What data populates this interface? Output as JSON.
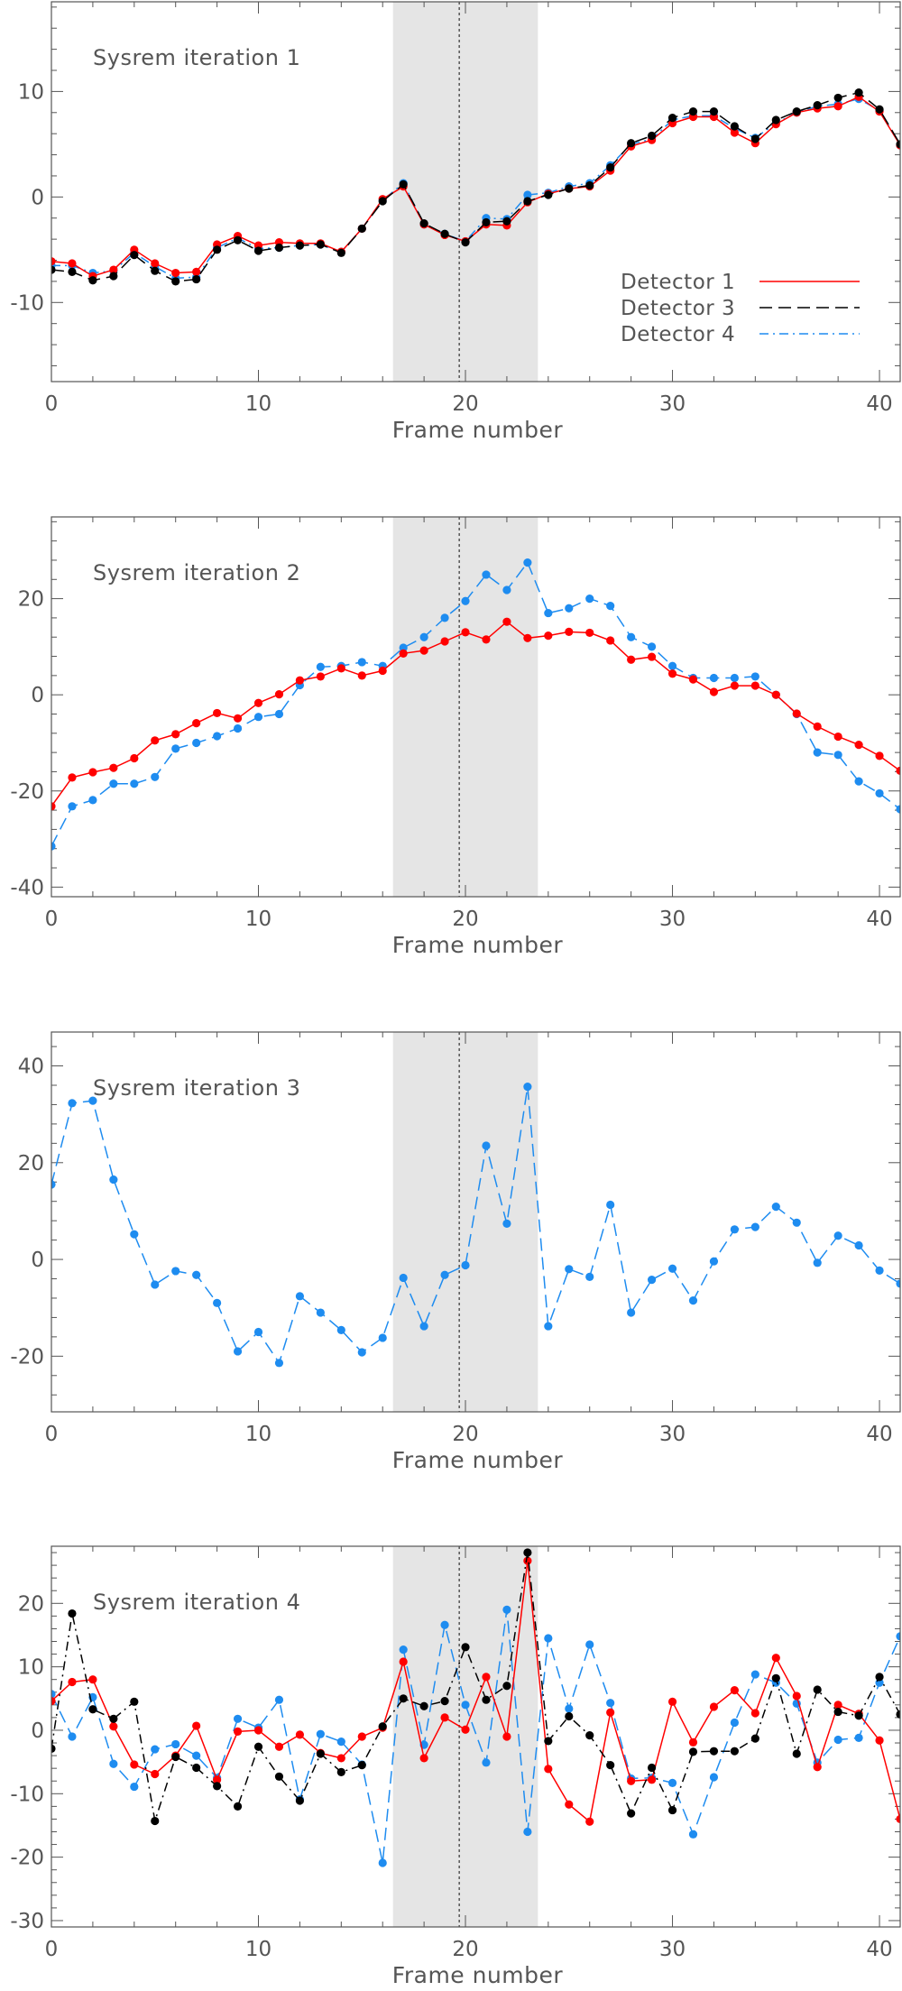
{
  "colors": {
    "detector_1": "#ff0000",
    "detector_3": "#000000",
    "detector_4": "#1e8cf0",
    "shade": "#e5e5e5",
    "frame": "#555555",
    "text": "#555555"
  },
  "chart_data": [
    {
      "type": "line",
      "title": "Sysrem iteration 1",
      "xlabel": "Frame number",
      "ylabel": "",
      "xlim": [
        0,
        41
      ],
      "ylim": [
        -17.5,
        18.5
      ],
      "xticks": [
        0,
        10,
        20,
        30,
        40
      ],
      "yticks": [
        -10,
        0,
        10
      ],
      "shaded_region": [
        16.5,
        23.5
      ],
      "vertical_dotted_line": 19.7,
      "legend": {
        "placement": "bottom-right",
        "entries": [
          {
            "label": "Detector 1",
            "series": "detector_1",
            "line_style": "solid"
          },
          {
            "label": "Detector 3",
            "series": "detector_3",
            "line_style": "dashed"
          },
          {
            "label": "Detector 4",
            "series": "detector_4",
            "line_style": "dash-dot"
          }
        ]
      },
      "series": [
        {
          "name": "Detector 4",
          "color_key": "detector_4",
          "line_style": "dash-dot",
          "values": [
            -6.5,
            -6.5,
            -7.2,
            -7.0,
            -5.3,
            -6.6,
            -7.7,
            -7.6,
            -4.8,
            -3.9,
            -4.9,
            -4.8,
            -4.6,
            -4.5,
            -5.2,
            -3.0,
            -0.3,
            1.3,
            -2.6,
            -3.5,
            -4.2,
            -2.0,
            -2.1,
            0.2,
            0.4,
            1.0,
            1.3,
            3.0,
            5.0,
            5.5,
            7.3,
            7.7,
            7.7,
            6.5,
            5.6,
            7.0,
            8.0,
            8.6,
            8.8,
            9.3,
            8.2,
            4.9
          ]
        },
        {
          "name": "Detector 1",
          "color_key": "detector_1",
          "line_style": "solid",
          "values": [
            -6.1,
            -6.3,
            -7.5,
            -6.9,
            -5.0,
            -6.3,
            -7.2,
            -7.1,
            -4.5,
            -3.7,
            -4.6,
            -4.3,
            -4.4,
            -4.4,
            -5.2,
            -3.0,
            -0.2,
            1.0,
            -2.6,
            -3.6,
            -4.2,
            -2.6,
            -2.7,
            -0.5,
            0.3,
            0.8,
            1.0,
            2.5,
            4.8,
            5.4,
            7.0,
            7.6,
            7.6,
            6.1,
            5.1,
            6.9,
            8.0,
            8.4,
            8.6,
            9.5,
            8.1,
            4.9
          ]
        },
        {
          "name": "Detector 3",
          "color_key": "detector_3",
          "line_style": "dashed",
          "values": [
            -6.9,
            -7.1,
            -7.9,
            -7.5,
            -5.5,
            -7.0,
            -8.0,
            -7.8,
            -5.0,
            -4.1,
            -5.1,
            -4.8,
            -4.6,
            -4.5,
            -5.3,
            -3.0,
            -0.4,
            1.2,
            -2.5,
            -3.5,
            -4.3,
            -2.4,
            -2.3,
            -0.4,
            0.2,
            0.8,
            1.1,
            2.8,
            5.1,
            5.8,
            7.5,
            8.1,
            8.1,
            6.7,
            5.5,
            7.3,
            8.1,
            8.7,
            9.4,
            9.9,
            8.3,
            5.0
          ]
        }
      ]
    },
    {
      "type": "line",
      "title": "Sysrem iteration 2",
      "xlabel": "Frame number",
      "ylabel": "",
      "xlim": [
        0,
        41
      ],
      "ylim": [
        -42,
        37
      ],
      "xticks": [
        0,
        10,
        20,
        30,
        40
      ],
      "yticks": [
        -40,
        -20,
        0,
        20
      ],
      "shaded_region": [
        16.5,
        23.5
      ],
      "vertical_dotted_line": 19.7,
      "series": [
        {
          "name": "Detector 4",
          "color_key": "detector_4",
          "line_style": "dashed",
          "values": [
            -31.5,
            -23.2,
            -21.9,
            -18.5,
            -18.5,
            -17.1,
            -11.2,
            -10.0,
            -8.6,
            -7.0,
            -4.6,
            -4.0,
            2.0,
            5.8,
            6.0,
            6.8,
            6.0,
            9.8,
            12.0,
            16.0,
            19.5,
            25.0,
            21.8,
            27.5,
            17.0,
            18.0,
            20.0,
            18.5,
            12.0,
            10.0,
            6.0,
            3.5,
            3.5,
            3.5,
            3.8,
            0.0,
            -4.0,
            -12.0,
            -12.5,
            -18.0,
            -20.5,
            -23.8
          ]
        },
        {
          "name": "Detector 1",
          "color_key": "detector_1",
          "line_style": "solid",
          "values": [
            -23.2,
            -17.2,
            -16.1,
            -15.2,
            -13.2,
            -9.5,
            -8.2,
            -5.9,
            -3.8,
            -4.9,
            -1.7,
            0.1,
            3.0,
            3.8,
            5.5,
            4.0,
            5.0,
            8.6,
            9.2,
            11.1,
            13.0,
            11.5,
            15.2,
            11.8,
            12.3,
            13.1,
            12.9,
            11.3,
            7.3,
            7.9,
            4.4,
            3.2,
            0.6,
            1.9,
            1.9,
            0.0,
            -3.9,
            -6.6,
            -8.7,
            -10.4,
            -12.7,
            -15.8
          ]
        }
      ]
    },
    {
      "type": "line",
      "title": "Sysrem iteration 3",
      "xlabel": "Frame number",
      "ylabel": "",
      "xlim": [
        0,
        41
      ],
      "ylim": [
        -31.5,
        47
      ],
      "xticks": [
        0,
        10,
        20,
        30,
        40
      ],
      "yticks": [
        -20,
        0,
        20,
        40
      ],
      "shaded_region": [
        16.5,
        23.5
      ],
      "vertical_dotted_line": 19.7,
      "series": [
        {
          "name": "Detector 4",
          "color_key": "detector_4",
          "line_style": "dashed",
          "values": [
            15.5,
            32.3,
            32.8,
            16.5,
            5.2,
            -5.2,
            -2.4,
            -3.2,
            -9.0,
            -19.0,
            -15.0,
            -21.4,
            -7.6,
            -11.0,
            -14.6,
            -19.2,
            -16.2,
            -3.8,
            -13.8,
            -3.2,
            -1.2,
            23.5,
            7.4,
            35.7,
            -13.8,
            -2.0,
            -3.6,
            11.3,
            -11.0,
            -4.2,
            -1.9,
            -8.5,
            -0.4,
            6.2,
            6.7,
            10.9,
            7.6,
            -0.7,
            4.9,
            2.9,
            -2.3,
            -5.0
          ]
        }
      ]
    },
    {
      "type": "line",
      "title": "Sysrem iteration 4",
      "xlabel": "Frame number",
      "ylabel": "",
      "xlim": [
        0,
        41
      ],
      "ylim": [
        -31,
        29
      ],
      "xticks": [
        0,
        10,
        20,
        30,
        40
      ],
      "yticks": [
        -30,
        -20,
        -10,
        0,
        10,
        20
      ],
      "shaded_region": [
        16.5,
        23.5
      ],
      "vertical_dotted_line": 19.7,
      "series": [
        {
          "name": "Detector 4",
          "color_key": "detector_4",
          "line_style": "dashed",
          "values": [
            5.7,
            -1.0,
            5.2,
            -5.3,
            -8.9,
            -3.0,
            -2.2,
            -4.0,
            -7.5,
            1.8,
            0.4,
            4.8,
            -10.9,
            -0.6,
            -1.8,
            -5.4,
            -20.9,
            12.7,
            -2.3,
            16.6,
            4.0,
            -5.1,
            19.0,
            -16.0,
            14.5,
            3.4,
            13.5,
            4.3,
            -7.6,
            -7.5,
            -8.3,
            -16.4,
            -7.4,
            1.2,
            8.8,
            7.5,
            4.2,
            -5.1,
            -1.5,
            -1.2,
            7.5,
            14.8
          ]
        },
        {
          "name": "Detector 1",
          "color_key": "detector_1",
          "line_style": "solid",
          "values": [
            4.6,
            7.6,
            8.0,
            0.6,
            -5.4,
            -6.9,
            -4.0,
            0.7,
            -7.8,
            -0.2,
            0.0,
            -2.6,
            -0.7,
            -3.6,
            -4.4,
            -1.0,
            0.4,
            10.8,
            -4.4,
            2.0,
            0.1,
            8.4,
            -1.0,
            26.7,
            -6.1,
            -11.7,
            -14.4,
            2.8,
            -8.0,
            -7.8,
            4.5,
            -1.9,
            3.7,
            6.3,
            2.7,
            11.4,
            5.4,
            -5.8,
            4.0,
            2.6,
            -1.6,
            -14.0
          ]
        },
        {
          "name": "Detector 3",
          "color_key": "detector_3",
          "line_style": "dash-dot",
          "values": [
            -2.9,
            18.4,
            3.3,
            1.8,
            4.5,
            -14.3,
            -4.2,
            -5.9,
            -8.8,
            -12.0,
            -2.6,
            -7.3,
            -11.1,
            -3.7,
            -6.6,
            -5.5,
            0.6,
            5.0,
            3.8,
            4.6,
            13.1,
            4.8,
            7.0,
            28.0,
            -1.7,
            2.2,
            -0.8,
            -5.5,
            -13.1,
            -5.9,
            -12.6,
            -3.4,
            -3.3,
            -3.3,
            -1.3,
            8.2,
            -3.7,
            6.4,
            2.9,
            2.3,
            8.4,
            2.5
          ]
        }
      ]
    }
  ]
}
